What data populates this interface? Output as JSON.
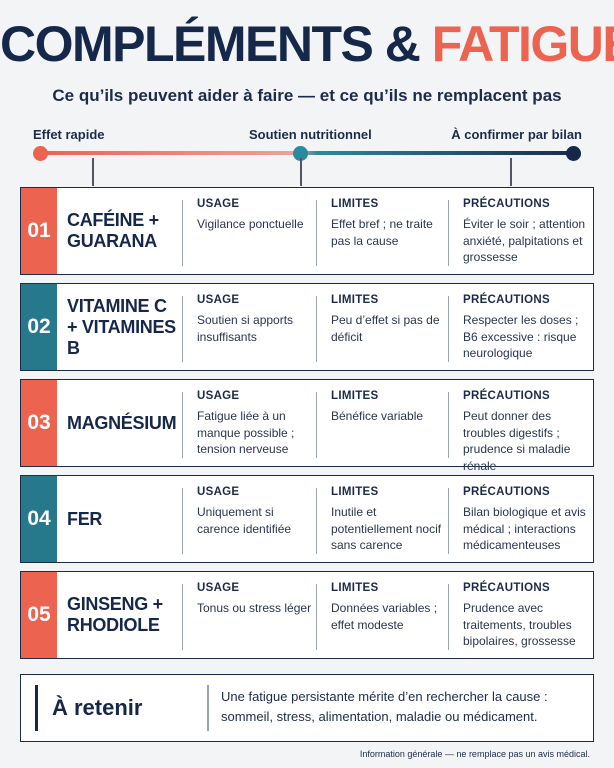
{
  "title": {
    "part1": "COMPLÉMENTS & ",
    "part2": "FATIGUE"
  },
  "subtitle": "Ce qu’ils peuvent aider à faire — et ce qu’ils ne remplacent pas",
  "scale": {
    "left": "Effet rapide",
    "mid": "Soutien nutritionnel",
    "right": "À confirmer par bilan"
  },
  "column_heads": {
    "usage": "USAGE",
    "limites": "LIMITES",
    "precautions": "PRÉCAUTIONS"
  },
  "rows": [
    {
      "num": "01",
      "name": "CAFÉINE + GUARANA",
      "usage": "Vigilance ponctuelle",
      "limites": "Effet bref ; ne traite pas la cause",
      "precautions": "Éviter le soir ; attention anxiété, palpitations et grossesse"
    },
    {
      "num": "02",
      "name": "VITAMINE C + VITAMINES B",
      "usage": "Soutien si apports insuffisants",
      "limites": "Peu d’effet si pas de déficit",
      "precautions": "Respecter les doses ; B6 excessive : risque neurologique"
    },
    {
      "num": "03",
      "name": "MAGNÉSIUM",
      "usage": "Fatigue liée à un manque possible ; tension nerveuse",
      "limites": "Bénéfice variable",
      "precautions": "Peut donner des troubles digestifs ; prudence si maladie rénale"
    },
    {
      "num": "04",
      "name": "FER",
      "usage": "Uniquement si carence identifiée",
      "limites": "Inutile et potentiellement nocif sans carence",
      "precautions": "Bilan biologique et avis médical ; interactions médicamenteuses"
    },
    {
      "num": "05",
      "name": "GINSENG + RHODIOLE",
      "usage": "Tonus ou stress léger",
      "limites": "Données variables ; effet modeste",
      "precautions": "Prudence avec traitements, troubles bipolaires, grossesse"
    }
  ],
  "retenir": {
    "heading": "À retenir",
    "text": "Une fatigue persistante mérite d’en rechercher la cause : sommeil, stress, alimentation, maladie ou médicament."
  },
  "footer": "Information générale — ne remplace pas un avis médical.",
  "colors": {
    "navy": "#16284a",
    "coral": "#ec6350",
    "teal": "#26788b"
  }
}
